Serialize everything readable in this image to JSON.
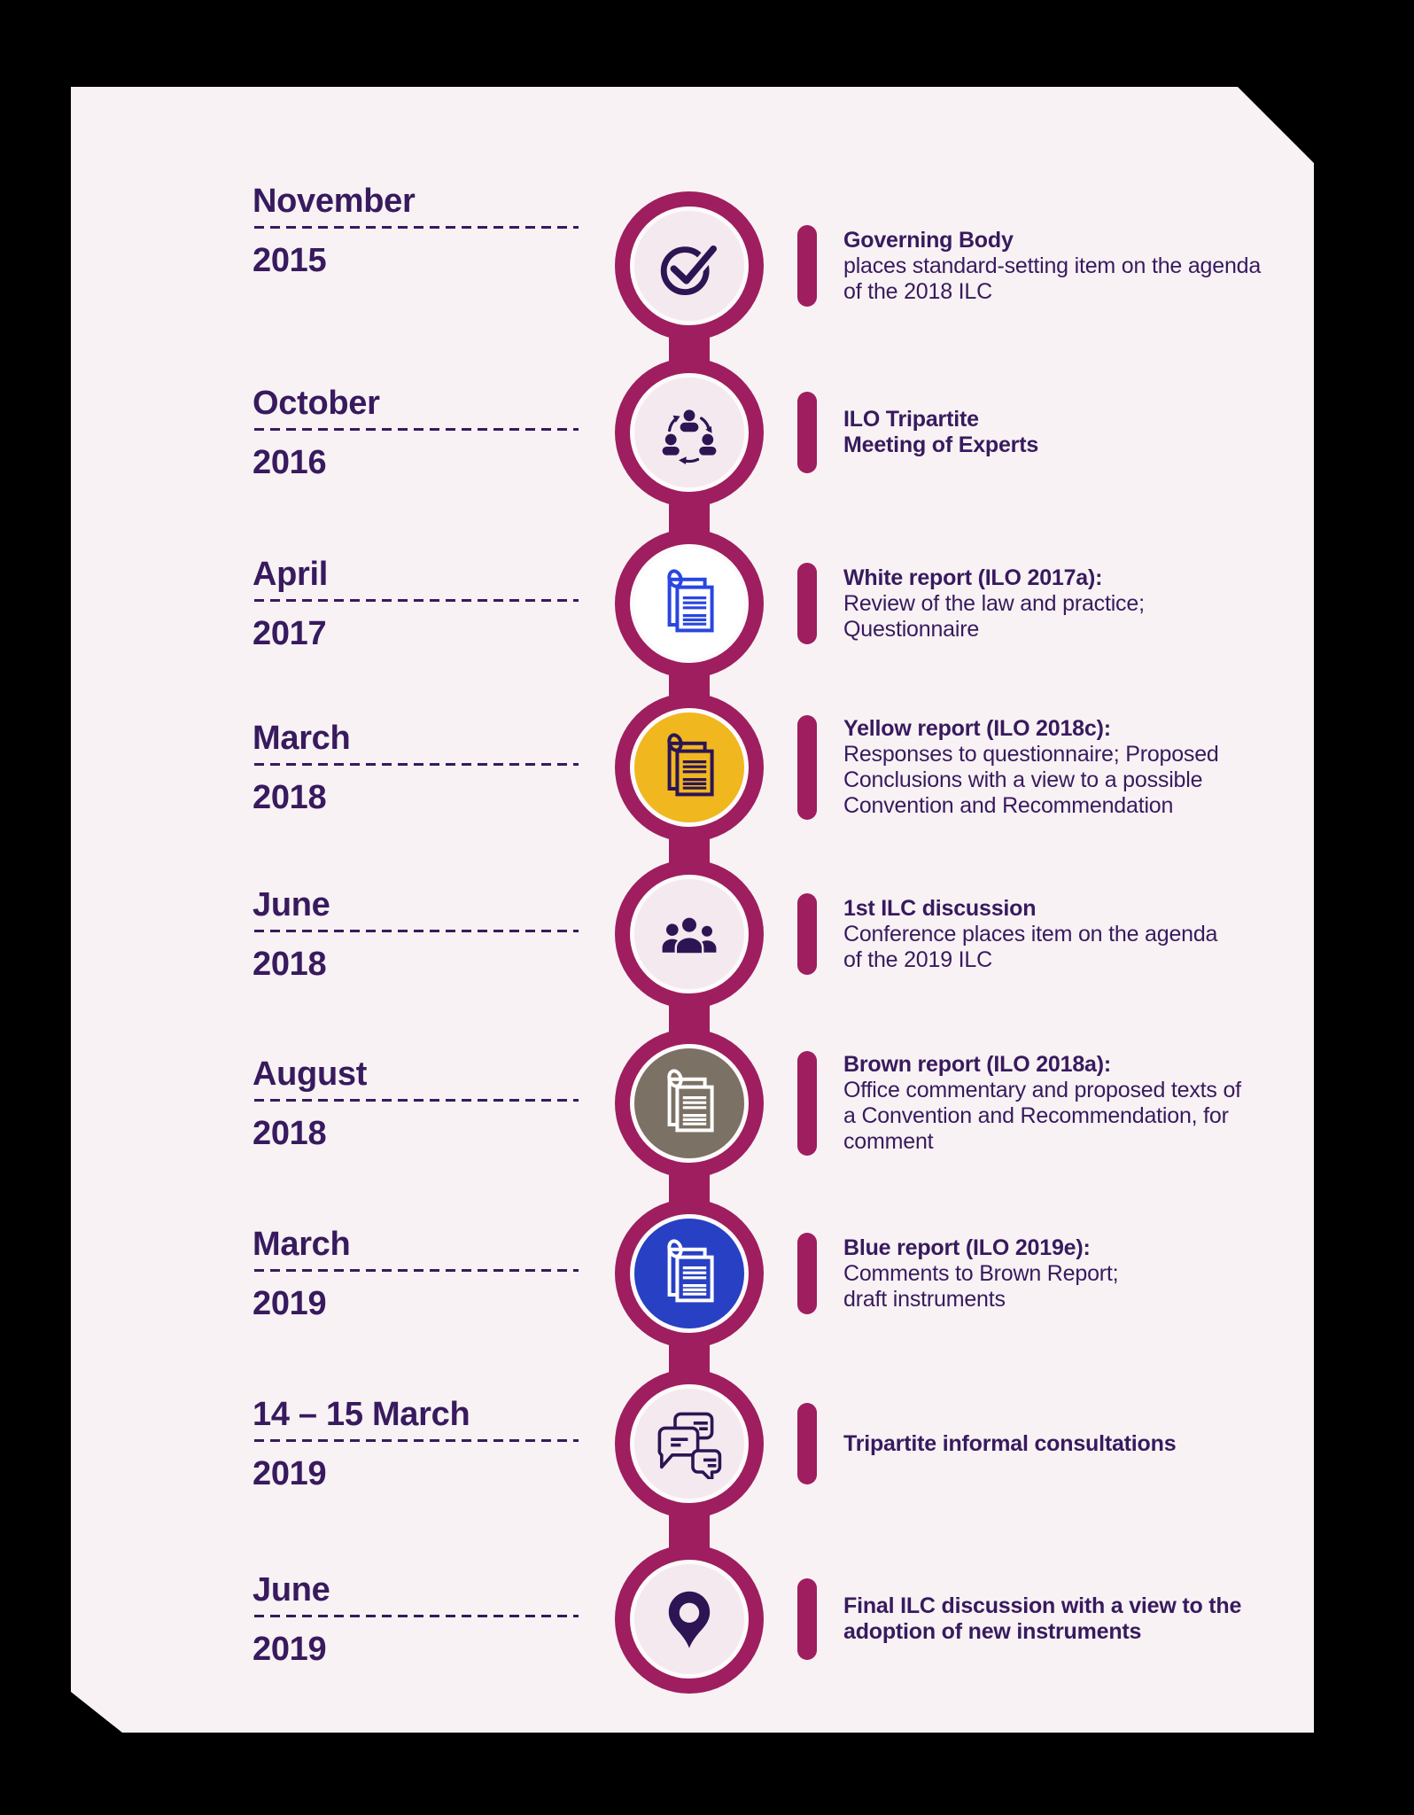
{
  "page": {
    "background": "#000000"
  },
  "card": {
    "background": "#f8f2f4"
  },
  "theme": {
    "accent_magenta": "#9e1e5f",
    "text_purple": "#381a5e",
    "icon_dark_purple": "#2d1554",
    "light_circle_fill": "#f4e9ef"
  },
  "timeline": {
    "entries": [
      {
        "month": "November",
        "year": "2015",
        "icon": "check-circle-icon",
        "circle_fill": "#f4e9ef",
        "icon_color": "#2d1554",
        "title": "Governing Body",
        "body": "places standard-setting item on the agenda\nof the 2018 ILC"
      },
      {
        "month": "October",
        "year": "2016",
        "icon": "people-network-icon",
        "circle_fill": "#f4e9ef",
        "icon_color": "#2d1554",
        "title": "ILO Tripartite\nMeeting of Experts",
        "body": ""
      },
      {
        "month": "April",
        "year": "2017",
        "icon": "report-document-icon",
        "circle_fill": "#ffffff",
        "icon_color": "#2946e0",
        "title": "White report (ILO 2017a):",
        "body": "Review of the law and practice;\nQuestionnaire"
      },
      {
        "month": "March",
        "year": "2018",
        "icon": "report-document-icon",
        "circle_fill": "#f0b71f",
        "icon_color": "#2d1554",
        "title": "Yellow report (ILO 2018c):",
        "body": "Responses to questionnaire; Proposed\nConclusions with a view to a possible\nConvention and Recommendation"
      },
      {
        "month": "June",
        "year": "2018",
        "icon": "people-group-icon",
        "circle_fill": "#f4e9ef",
        "icon_color": "#2d1554",
        "title": "1st ILC discussion",
        "body": "Conference places item on the agenda\nof the 2019 ILC"
      },
      {
        "month": "August",
        "year": "2018",
        "icon": "report-document-icon",
        "circle_fill": "#7b7164",
        "icon_color": "#ffffff",
        "title": "Brown report (ILO 2018a):",
        "body": "Office commentary and proposed texts of\na Convention and Recommendation, for\ncomment"
      },
      {
        "month": "March",
        "year": "2019",
        "icon": "report-document-icon",
        "circle_fill": "#2840c4",
        "icon_color": "#ffffff",
        "title": "Blue report (ILO 2019e):",
        "body": "Comments to Brown Report;\ndraft instruments"
      },
      {
        "month": "14 – 15 March",
        "year": "2019",
        "icon": "chat-bubbles-icon",
        "circle_fill": "#f4e9ef",
        "icon_color": "#2d1554",
        "title": "Tripartite informal consultations",
        "body": ""
      },
      {
        "month": "June",
        "year": "2019",
        "icon": "map-pin-icon",
        "circle_fill": "#f4e9ef",
        "icon_color": "#2d1554",
        "title": "Final ILC discussion with a view to the\nadoption of new instruments",
        "body": ""
      }
    ]
  }
}
